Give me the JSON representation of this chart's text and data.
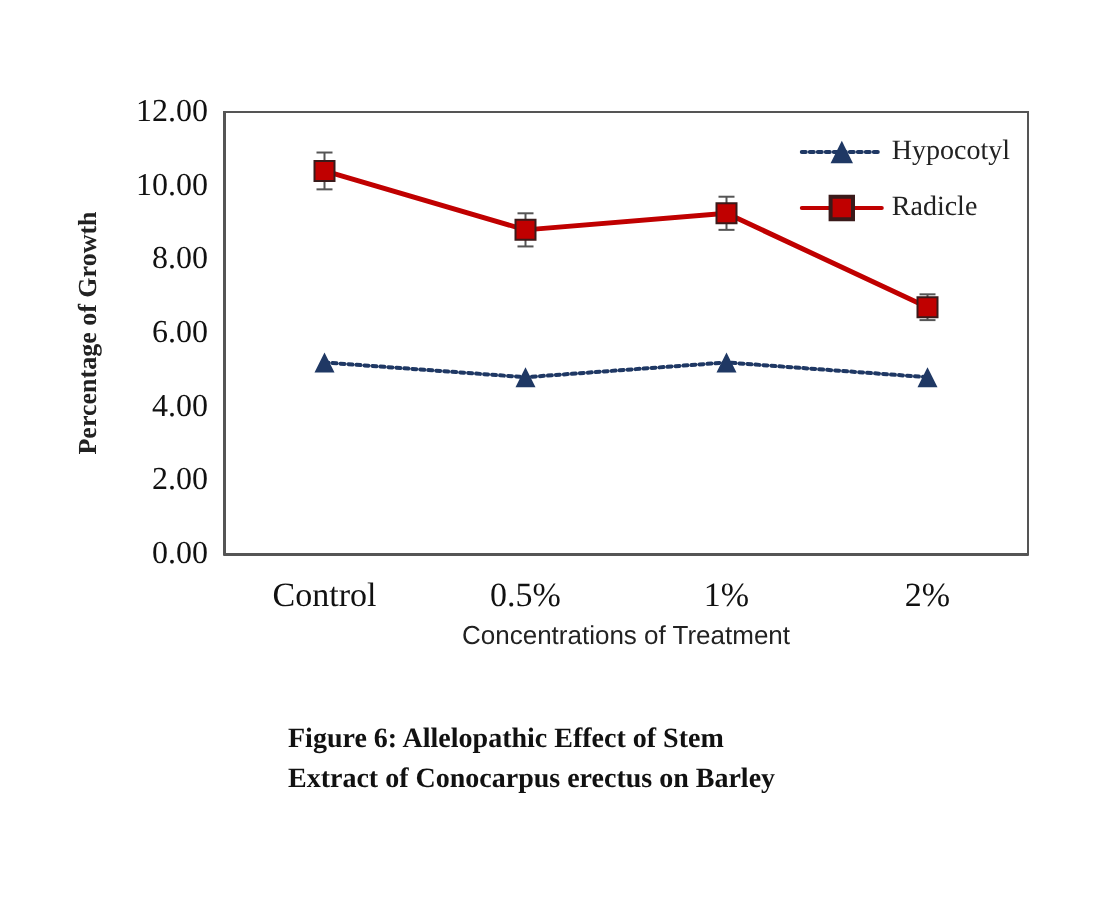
{
  "chart_data": {
    "type": "line",
    "xlabel": "Concentrations of Treatment",
    "ylabel": "Percentage of Growth",
    "categories": [
      "Control",
      "0.5%",
      "1%",
      "2%"
    ],
    "series": [
      {
        "name": "Hypocotyl",
        "color": "#1f3864",
        "values": [
          5.2,
          4.8,
          5.2,
          4.8
        ],
        "marker": "triangle",
        "line_style": "dotted"
      },
      {
        "name": "Radicle",
        "color": "#c00000",
        "values": [
          10.4,
          8.8,
          9.25,
          6.7
        ],
        "errors": [
          0.5,
          0.45,
          0.45,
          0.35
        ],
        "marker": "square",
        "line_style": "solid"
      }
    ],
    "ylim": [
      0,
      12
    ],
    "yticks": [
      {
        "value": 0,
        "label": "0.00"
      },
      {
        "value": 2,
        "label": "2.00"
      },
      {
        "value": 4,
        "label": "4.00"
      },
      {
        "value": 6,
        "label": "6.00"
      },
      {
        "value": 8,
        "label": "8.00"
      },
      {
        "value": 10,
        "label": "10.00"
      },
      {
        "value": 12,
        "label": "12.00"
      }
    ],
    "grid": false,
    "legend": "top right",
    "annotations": [
      "Figure 6: Allelopathic Effect of Stem Extract of Conocarpus erectus on Barley"
    ]
  }
}
